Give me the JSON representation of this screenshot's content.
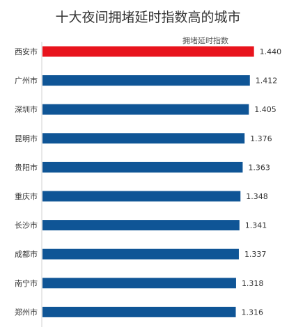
{
  "chart_data": {
    "type": "bar",
    "orientation": "horizontal",
    "title": "十大夜间拥堵延时指数高的城市",
    "categories": [
      "西安市",
      "广州市",
      "深圳市",
      "昆明市",
      "贵阳市",
      "重庆市",
      "长沙市",
      "成都市",
      "南宁市",
      "郑州市"
    ],
    "series": [
      {
        "name": "拥堵延时指数",
        "values": [
          1.44,
          1.412,
          1.405,
          1.376,
          1.363,
          1.348,
          1.341,
          1.337,
          1.318,
          1.316
        ]
      }
    ],
    "value_labels": [
      "1.440",
      "1.412",
      "1.405",
      "1.376",
      "1.363",
      "1.348",
      "1.341",
      "1.337",
      "1.318",
      "1.316"
    ],
    "xlim": [
      0,
      1.47
    ],
    "grid": false,
    "legend": "top-right",
    "colors": {
      "highlight": "#e8141d",
      "default": "#0f5596",
      "axis": "#d0d0d0",
      "label": "#333333"
    },
    "highlight_index": 0
  }
}
